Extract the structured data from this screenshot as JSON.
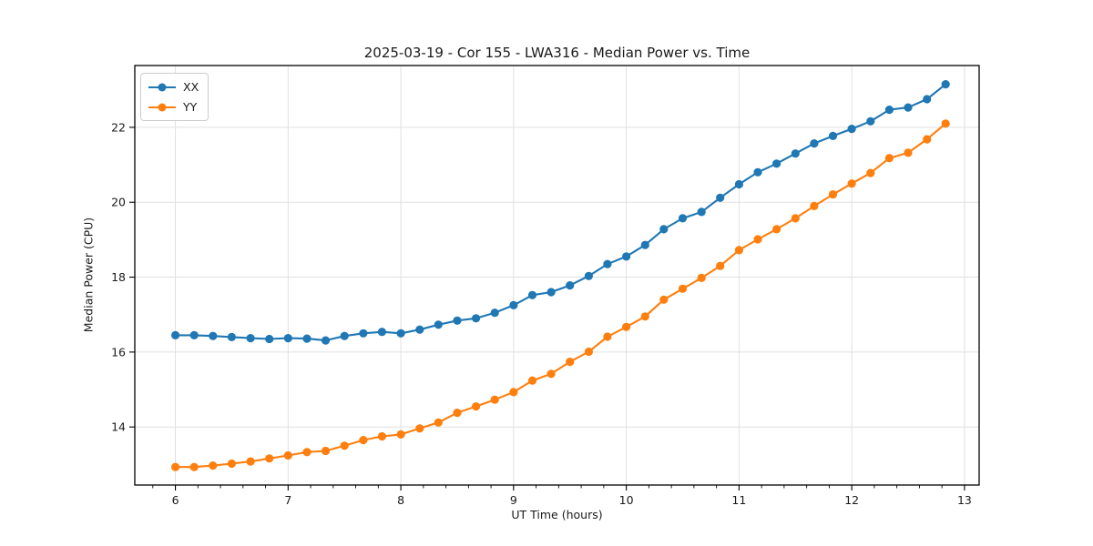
{
  "figure": {
    "background": "#ffffff"
  },
  "chart_data": {
    "type": "line",
    "title": "2025-03-19 - Cor 155 - LWA316 - Median Power vs. Time",
    "xlabel": "UT Time (hours)",
    "ylabel": "Median Power (CPU)",
    "xlim": [
      5.64,
      13.13
    ],
    "ylim": [
      12.45,
      23.65
    ],
    "x_ticks": [
      6,
      7,
      8,
      9,
      10,
      11,
      12,
      13
    ],
    "y_ticks": [
      14,
      16,
      18,
      20,
      22
    ],
    "x_minor_step": 0.2,
    "grid": true,
    "legend_position": "upper-left",
    "axis_color": "#000000",
    "grid_color": "#e0e0e0",
    "x": [
      6.0,
      6.167,
      6.333,
      6.5,
      6.667,
      6.833,
      7.0,
      7.167,
      7.333,
      7.5,
      7.667,
      7.833,
      8.0,
      8.167,
      8.333,
      8.5,
      8.667,
      8.833,
      9.0,
      9.167,
      9.333,
      9.5,
      9.667,
      9.833,
      10.0,
      10.167,
      10.333,
      10.5,
      10.667,
      10.833,
      11.0,
      11.167,
      11.333,
      11.5,
      11.667,
      11.833,
      12.0,
      12.167,
      12.333,
      12.5,
      12.667,
      12.833
    ],
    "series": [
      {
        "name": "XX",
        "color": "#1f77b4",
        "marker": "circle",
        "values": [
          16.45,
          16.45,
          16.43,
          16.4,
          16.37,
          16.35,
          16.37,
          16.36,
          16.31,
          16.43,
          16.5,
          16.54,
          16.5,
          16.6,
          16.73,
          16.84,
          16.9,
          17.05,
          17.25,
          17.52,
          17.6,
          17.78,
          18.03,
          18.35,
          18.55,
          18.86,
          19.28,
          19.57,
          19.74,
          20.12,
          20.48,
          20.8,
          21.03,
          21.3,
          21.57,
          21.77,
          21.96,
          22.16,
          22.47,
          22.53,
          22.75,
          23.15
        ]
      },
      {
        "name": "YY",
        "color": "#ff7f0e",
        "marker": "circle",
        "values": [
          12.93,
          12.93,
          12.97,
          13.02,
          13.08,
          13.16,
          13.24,
          13.33,
          13.36,
          13.5,
          13.65,
          13.75,
          13.8,
          13.96,
          14.12,
          14.38,
          14.55,
          14.73,
          14.93,
          15.24,
          15.42,
          15.74,
          16.01,
          16.41,
          16.67,
          16.95,
          17.4,
          17.69,
          17.98,
          18.3,
          18.72,
          19.01,
          19.28,
          19.57,
          19.9,
          20.21,
          20.5,
          20.78,
          21.18,
          21.32,
          21.68,
          22.1
        ]
      }
    ]
  }
}
